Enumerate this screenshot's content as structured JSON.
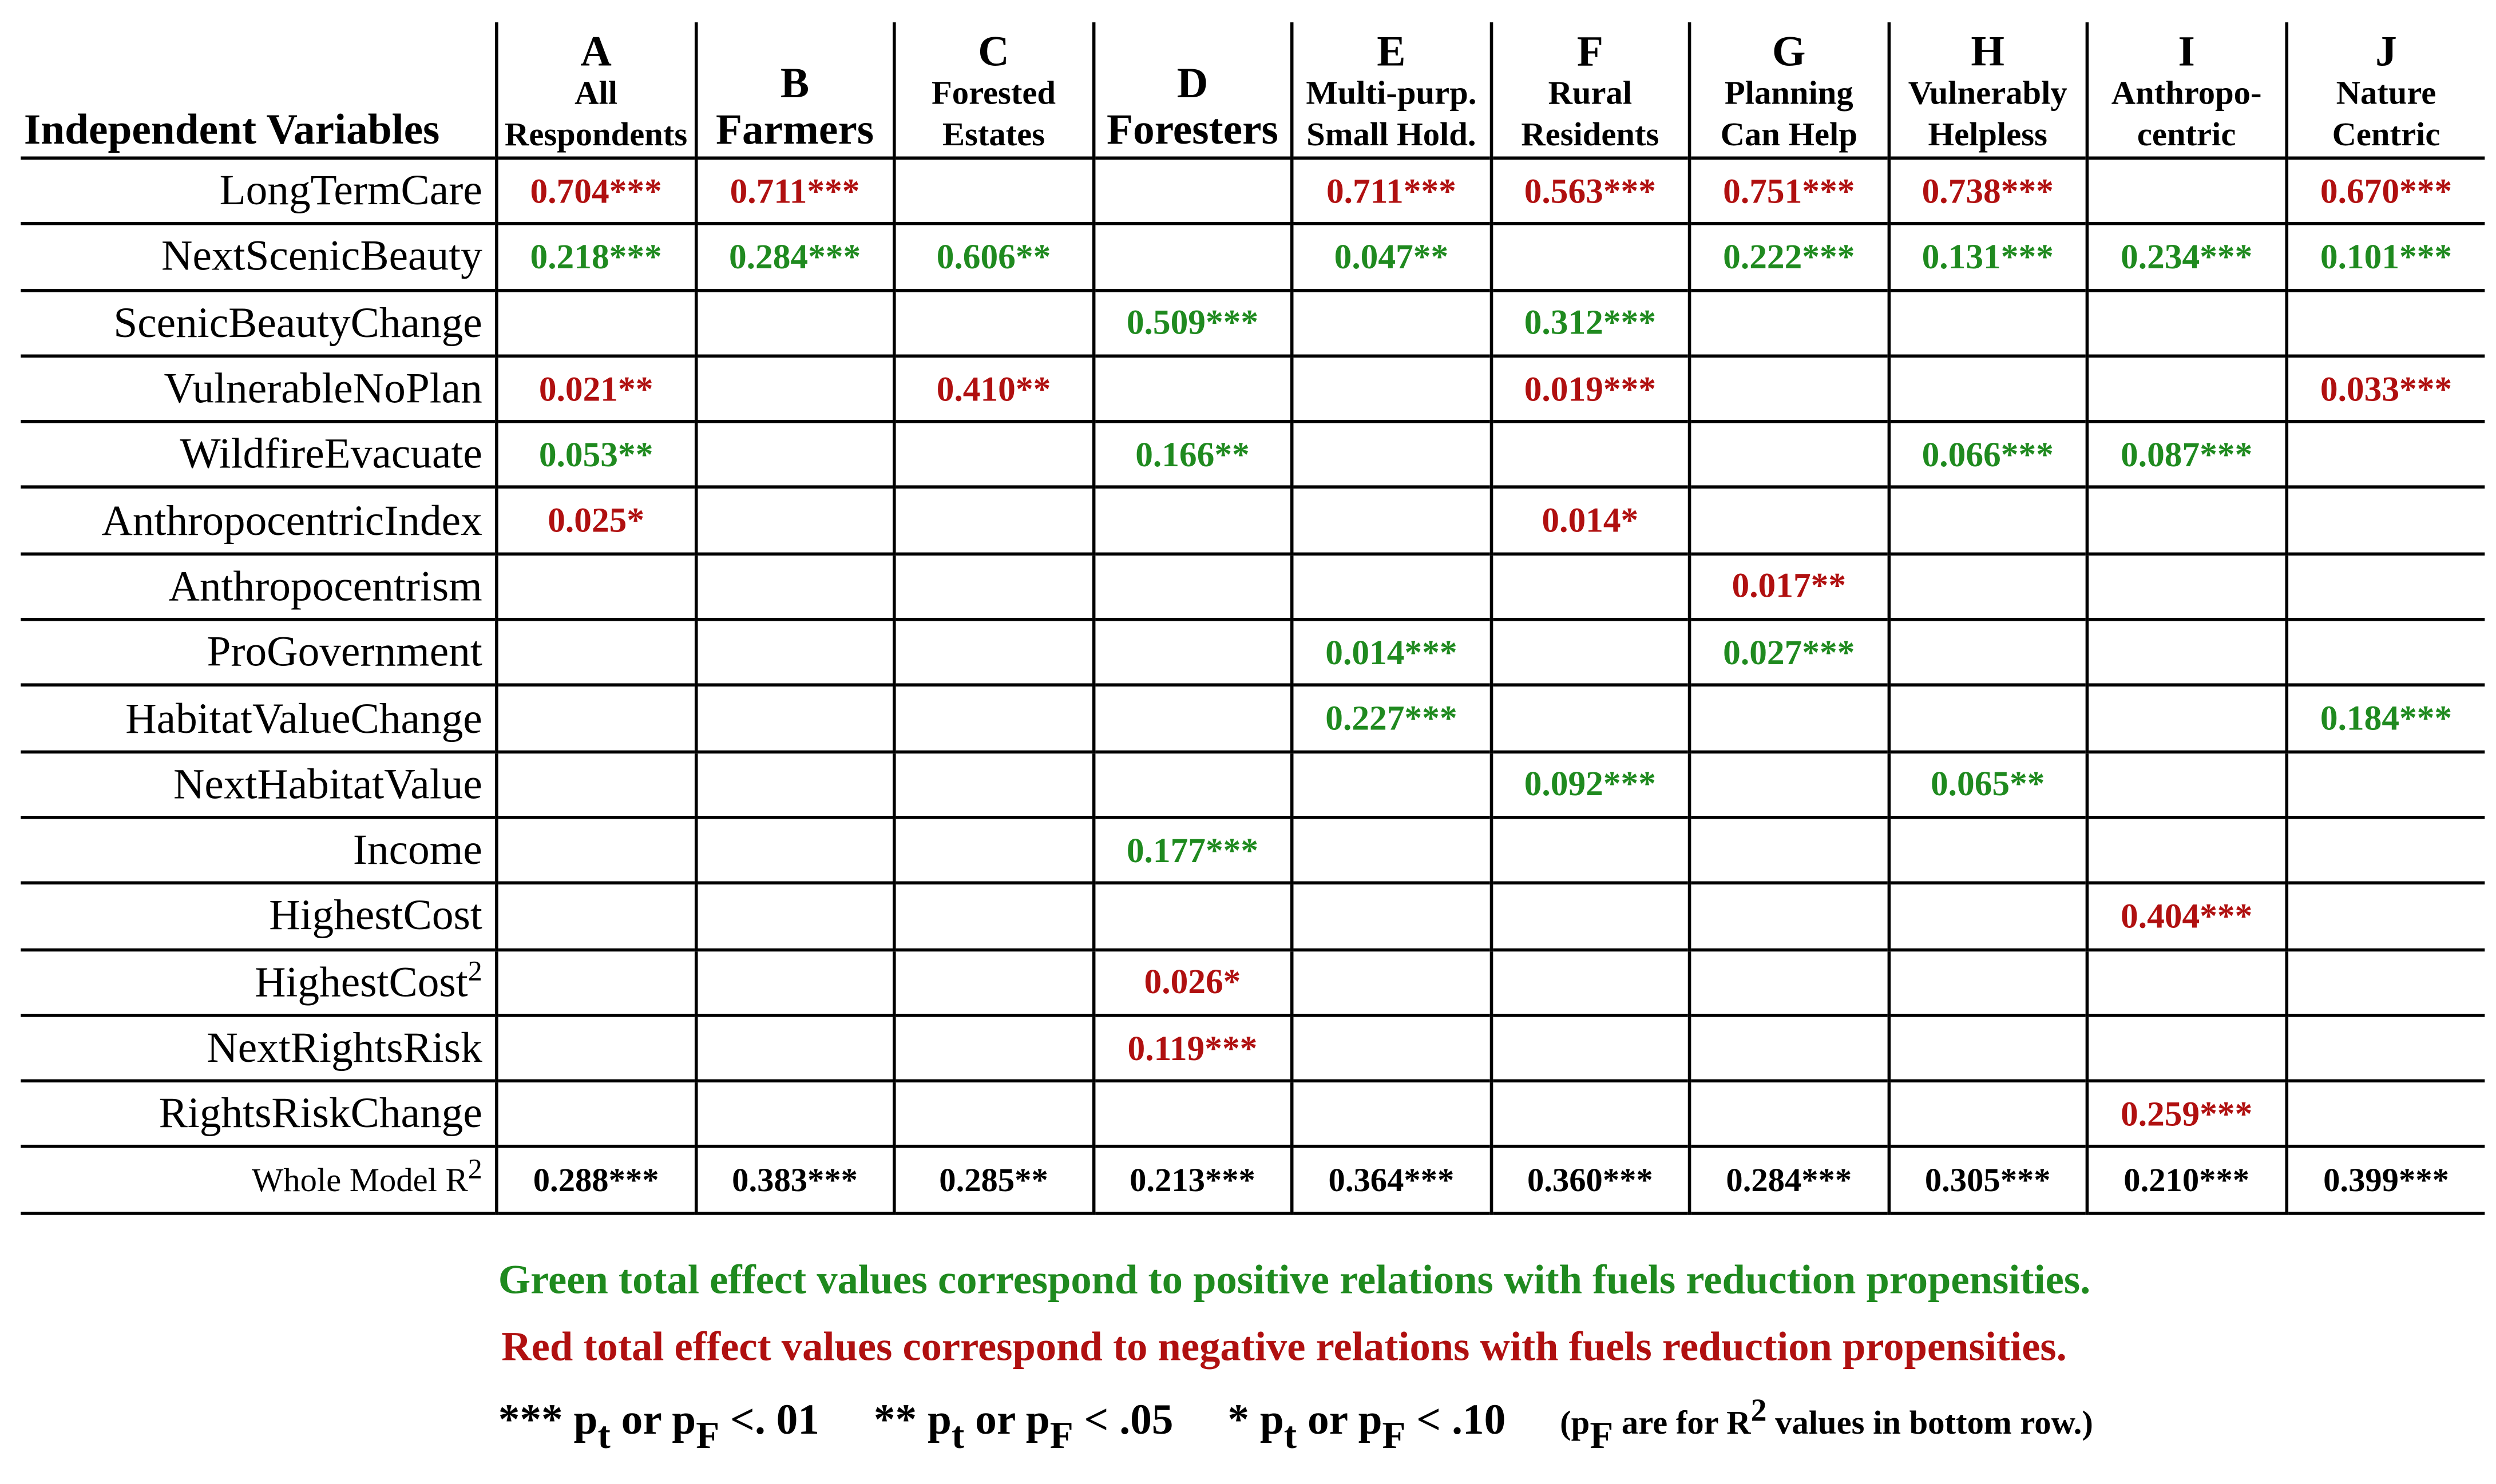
{
  "table": {
    "var_header": "Independent Variables",
    "columns": [
      {
        "letter": "A",
        "sub1": "All",
        "sub2": "Respondents"
      },
      {
        "letter": "B",
        "single": "Farmers"
      },
      {
        "letter": "C",
        "sub1": "Forested",
        "sub2": "Estates"
      },
      {
        "letter": "D",
        "single": "Foresters"
      },
      {
        "letter": "E",
        "sub1": "Multi-purp.",
        "sub2": "Small Hold."
      },
      {
        "letter": "F",
        "sub1": "Rural",
        "sub2": "Residents"
      },
      {
        "letter": "G",
        "sub1": "Planning",
        "sub2": "Can Help"
      },
      {
        "letter": "H",
        "sub1": "Vulnerably",
        "sub2": "Helpless"
      },
      {
        "letter": "I",
        "sub1": "Anthropo-",
        "sub2": "centric"
      },
      {
        "letter": "J",
        "sub1": "Nature",
        "sub2": "Centric"
      }
    ],
    "rows": [
      {
        "var": "LongTermCare",
        "cells": [
          {
            "v": "0.704***",
            "c": "neg"
          },
          {
            "v": "0.711***",
            "c": "neg"
          },
          {
            "v": "",
            "c": ""
          },
          {
            "v": "",
            "c": ""
          },
          {
            "v": "0.711***",
            "c": "neg"
          },
          {
            "v": "0.563***",
            "c": "neg"
          },
          {
            "v": "0.751***",
            "c": "neg"
          },
          {
            "v": "0.738***",
            "c": "neg"
          },
          {
            "v": "",
            "c": ""
          },
          {
            "v": "0.670***",
            "c": "neg"
          }
        ]
      },
      {
        "var": "NextScenicBeauty",
        "cells": [
          {
            "v": "0.218***",
            "c": "pos"
          },
          {
            "v": "0.284***",
            "c": "pos"
          },
          {
            "v": "0.606**",
            "c": "pos"
          },
          {
            "v": "",
            "c": ""
          },
          {
            "v": "0.047**",
            "c": "pos"
          },
          {
            "v": "",
            "c": ""
          },
          {
            "v": "0.222***",
            "c": "pos"
          },
          {
            "v": "0.131***",
            "c": "pos"
          },
          {
            "v": "0.234***",
            "c": "pos"
          },
          {
            "v": "0.101***",
            "c": "pos"
          }
        ]
      },
      {
        "var": "ScenicBeautyChange",
        "cells": [
          {
            "v": "",
            "c": ""
          },
          {
            "v": "",
            "c": ""
          },
          {
            "v": "",
            "c": ""
          },
          {
            "v": "0.509***",
            "c": "pos"
          },
          {
            "v": "",
            "c": ""
          },
          {
            "v": "0.312***",
            "c": "pos"
          },
          {
            "v": "",
            "c": ""
          },
          {
            "v": "",
            "c": ""
          },
          {
            "v": "",
            "c": ""
          },
          {
            "v": "",
            "c": ""
          }
        ]
      },
      {
        "var": "VulnerableNoPlan",
        "cells": [
          {
            "v": "0.021**",
            "c": "neg"
          },
          {
            "v": "",
            "c": ""
          },
          {
            "v": "0.410**",
            "c": "neg"
          },
          {
            "v": "",
            "c": ""
          },
          {
            "v": "",
            "c": ""
          },
          {
            "v": "0.019***",
            "c": "neg"
          },
          {
            "v": "",
            "c": ""
          },
          {
            "v": "",
            "c": ""
          },
          {
            "v": "",
            "c": ""
          },
          {
            "v": "0.033***",
            "c": "neg"
          }
        ]
      },
      {
        "var": "WildfireEvacuate",
        "cells": [
          {
            "v": "0.053**",
            "c": "pos"
          },
          {
            "v": "",
            "c": ""
          },
          {
            "v": "",
            "c": ""
          },
          {
            "v": "0.166**",
            "c": "pos"
          },
          {
            "v": "",
            "c": ""
          },
          {
            "v": "",
            "c": ""
          },
          {
            "v": "",
            "c": ""
          },
          {
            "v": "0.066***",
            "c": "pos"
          },
          {
            "v": "0.087***",
            "c": "pos"
          },
          {
            "v": "",
            "c": ""
          }
        ]
      },
      {
        "var": "AnthropocentricIndex",
        "cells": [
          {
            "v": "0.025*",
            "c": "neg"
          },
          {
            "v": "",
            "c": ""
          },
          {
            "v": "",
            "c": ""
          },
          {
            "v": "",
            "c": ""
          },
          {
            "v": "",
            "c": ""
          },
          {
            "v": "0.014*",
            "c": "neg"
          },
          {
            "v": "",
            "c": ""
          },
          {
            "v": "",
            "c": ""
          },
          {
            "v": "",
            "c": ""
          },
          {
            "v": "",
            "c": ""
          }
        ]
      },
      {
        "var": "Anthropocentrism",
        "cells": [
          {
            "v": "",
            "c": ""
          },
          {
            "v": "",
            "c": ""
          },
          {
            "v": "",
            "c": ""
          },
          {
            "v": "",
            "c": ""
          },
          {
            "v": "",
            "c": ""
          },
          {
            "v": "",
            "c": ""
          },
          {
            "v": "0.017**",
            "c": "neg"
          },
          {
            "v": "",
            "c": ""
          },
          {
            "v": "",
            "c": ""
          },
          {
            "v": "",
            "c": ""
          }
        ]
      },
      {
        "var": "ProGovernment",
        "cells": [
          {
            "v": "",
            "c": ""
          },
          {
            "v": "",
            "c": ""
          },
          {
            "v": "",
            "c": ""
          },
          {
            "v": "",
            "c": ""
          },
          {
            "v": "0.014***",
            "c": "pos"
          },
          {
            "v": "",
            "c": ""
          },
          {
            "v": "0.027***",
            "c": "pos"
          },
          {
            "v": "",
            "c": ""
          },
          {
            "v": "",
            "c": ""
          },
          {
            "v": "",
            "c": ""
          }
        ]
      },
      {
        "var": "HabitatValueChange",
        "cells": [
          {
            "v": "",
            "c": ""
          },
          {
            "v": "",
            "c": ""
          },
          {
            "v": "",
            "c": ""
          },
          {
            "v": "",
            "c": ""
          },
          {
            "v": "0.227***",
            "c": "pos"
          },
          {
            "v": "",
            "c": ""
          },
          {
            "v": "",
            "c": ""
          },
          {
            "v": "",
            "c": ""
          },
          {
            "v": "",
            "c": ""
          },
          {
            "v": "0.184***",
            "c": "pos"
          }
        ]
      },
      {
        "var": "NextHabitatValue",
        "cells": [
          {
            "v": "",
            "c": ""
          },
          {
            "v": "",
            "c": ""
          },
          {
            "v": "",
            "c": ""
          },
          {
            "v": "",
            "c": ""
          },
          {
            "v": "",
            "c": ""
          },
          {
            "v": "0.092***",
            "c": "pos"
          },
          {
            "v": "",
            "c": ""
          },
          {
            "v": "0.065**",
            "c": "pos"
          },
          {
            "v": "",
            "c": ""
          },
          {
            "v": "",
            "c": ""
          }
        ]
      },
      {
        "var": "Income",
        "cells": [
          {
            "v": "",
            "c": ""
          },
          {
            "v": "",
            "c": ""
          },
          {
            "v": "",
            "c": ""
          },
          {
            "v": "0.177***",
            "c": "pos"
          },
          {
            "v": "",
            "c": ""
          },
          {
            "v": "",
            "c": ""
          },
          {
            "v": "",
            "c": ""
          },
          {
            "v": "",
            "c": ""
          },
          {
            "v": "",
            "c": ""
          },
          {
            "v": "",
            "c": ""
          }
        ]
      },
      {
        "var": "HighestCost",
        "cells": [
          {
            "v": "",
            "c": ""
          },
          {
            "v": "",
            "c": ""
          },
          {
            "v": "",
            "c": ""
          },
          {
            "v": "",
            "c": ""
          },
          {
            "v": "",
            "c": ""
          },
          {
            "v": "",
            "c": ""
          },
          {
            "v": "",
            "c": ""
          },
          {
            "v": "",
            "c": ""
          },
          {
            "v": "0.404***",
            "c": "neg"
          },
          {
            "v": "",
            "c": ""
          }
        ]
      },
      {
        "var": "HighestCost",
        "sup": "2",
        "cells": [
          {
            "v": "",
            "c": ""
          },
          {
            "v": "",
            "c": ""
          },
          {
            "v": "",
            "c": ""
          },
          {
            "v": "0.026*",
            "c": "neg"
          },
          {
            "v": "",
            "c": ""
          },
          {
            "v": "",
            "c": ""
          },
          {
            "v": "",
            "c": ""
          },
          {
            "v": "",
            "c": ""
          },
          {
            "v": "",
            "c": ""
          },
          {
            "v": "",
            "c": ""
          }
        ]
      },
      {
        "var": "NextRightsRisk",
        "cells": [
          {
            "v": "",
            "c": ""
          },
          {
            "v": "",
            "c": ""
          },
          {
            "v": "",
            "c": ""
          },
          {
            "v": "0.119***",
            "c": "neg"
          },
          {
            "v": "",
            "c": ""
          },
          {
            "v": "",
            "c": ""
          },
          {
            "v": "",
            "c": ""
          },
          {
            "v": "",
            "c": ""
          },
          {
            "v": "",
            "c": ""
          },
          {
            "v": "",
            "c": ""
          }
        ]
      },
      {
        "var": "RightsRiskChange",
        "cells": [
          {
            "v": "",
            "c": ""
          },
          {
            "v": "",
            "c": ""
          },
          {
            "v": "",
            "c": ""
          },
          {
            "v": "",
            "c": ""
          },
          {
            "v": "",
            "c": ""
          },
          {
            "v": "",
            "c": ""
          },
          {
            "v": "",
            "c": ""
          },
          {
            "v": "",
            "c": ""
          },
          {
            "v": "0.259***",
            "c": "neg"
          },
          {
            "v": "",
            "c": ""
          }
        ]
      },
      {
        "var": "Whole Model R",
        "sup": "2",
        "r2": true,
        "cells": [
          {
            "v": "0.288***",
            "c": "blk"
          },
          {
            "v": "0.383***",
            "c": "blk"
          },
          {
            "v": "0.285**",
            "c": "blk"
          },
          {
            "v": "0.213***",
            "c": "blk"
          },
          {
            "v": "0.364***",
            "c": "blk"
          },
          {
            "v": "0.360***",
            "c": "blk"
          },
          {
            "v": "0.284***",
            "c": "blk"
          },
          {
            "v": "0.305***",
            "c": "blk"
          },
          {
            "v": "0.210***",
            "c": "blk"
          },
          {
            "v": "0.399***",
            "c": "blk"
          }
        ]
      }
    ]
  },
  "colors": {
    "positive": "#1f8a1f",
    "negative": "#b01010"
  },
  "legend": {
    "green": "Green total effect values correspond to positive relations with fuels reduction propensities.",
    "red": "Red total effect values correspond to negative relations with fuels reduction propensities.",
    "sig": [
      {
        "stars": "***",
        "p": "p",
        "t": "t",
        "or": "or",
        "pF": "p",
        "F": "F",
        "thr": "<. 01"
      },
      {
        "stars": "**",
        "p": "p",
        "t": "t",
        "or": "or",
        "pF": "p",
        "F": "F",
        "thr": "< .05"
      },
      {
        "stars": "*",
        "p": "p",
        "t": "t",
        "or": "or",
        "pF": "p",
        "F": "F",
        "thr": "< .10"
      }
    ],
    "note": {
      "open": "(p",
      "sub": "F",
      "mid": " are for R",
      "sup": "2",
      "end": " values in bottom row.)"
    }
  }
}
